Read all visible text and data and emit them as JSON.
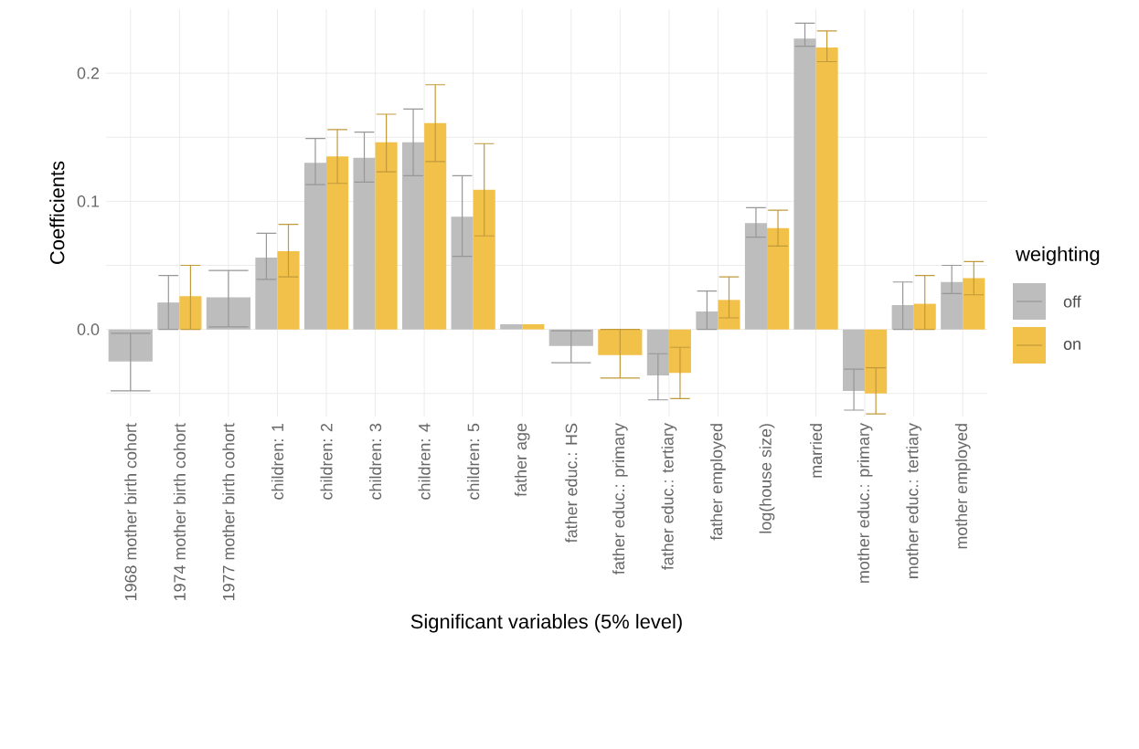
{
  "chart_data": {
    "type": "bar",
    "xlabel": "Significant variables (5% level)",
    "ylabel": "Coefficients",
    "legend_title": "weighting",
    "categories": [
      "1968 mother birth cohort",
      "1974 mother birth cohort",
      "1977 mother birth cohort",
      "children: 1",
      "children: 2",
      "children: 3",
      "children: 4",
      "children: 5",
      "father age",
      "father educ.: HS",
      "father educ.: primary",
      "father educ.: tertiary",
      "father employed",
      "log(house size)",
      "married",
      "mother educ.: primary",
      "mother educ.: tertiary",
      "mother employed"
    ],
    "series": [
      {
        "name": "off",
        "color": "#bdbdbd",
        "values": [
          -0.025,
          0.021,
          0.025,
          0.056,
          0.13,
          0.134,
          0.146,
          0.088,
          0.004,
          -0.013,
          null,
          -0.036,
          0.014,
          0.083,
          0.227,
          -0.048,
          0.019,
          0.037
        ],
        "errors": [
          [
            -0.048,
            -0.003
          ],
          [
            0.0,
            0.042
          ],
          [
            0.002,
            0.046
          ],
          [
            0.039,
            0.075
          ],
          [
            0.113,
            0.149
          ],
          [
            0.115,
            0.154
          ],
          [
            0.12,
            0.172
          ],
          [
            0.057,
            0.12
          ],
          null,
          [
            -0.026,
            -0.001
          ],
          null,
          [
            -0.055,
            -0.019
          ],
          [
            0.0,
            0.03
          ],
          [
            0.072,
            0.095
          ],
          [
            0.221,
            0.239
          ],
          [
            -0.063,
            -0.031
          ],
          [
            0.0,
            0.037
          ],
          [
            0.028,
            0.05
          ]
        ]
      },
      {
        "name": "on",
        "color": "#f2c14a",
        "values": [
          null,
          0.026,
          null,
          0.061,
          0.135,
          0.146,
          0.161,
          0.109,
          0.004,
          null,
          -0.02,
          -0.034,
          0.023,
          0.079,
          0.22,
          -0.05,
          0.02,
          0.04
        ],
        "errors": [
          null,
          [
            0.0,
            0.05
          ],
          null,
          [
            0.041,
            0.082
          ],
          [
            0.114,
            0.156
          ],
          [
            0.123,
            0.168
          ],
          [
            0.131,
            0.191
          ],
          [
            0.073,
            0.145
          ],
          null,
          null,
          [
            -0.038,
            0.0
          ],
          [
            -0.054,
            -0.014
          ],
          [
            0.009,
            0.041
          ],
          [
            0.065,
            0.093
          ],
          [
            0.209,
            0.233
          ],
          [
            -0.066,
            -0.03
          ],
          [
            0.0,
            0.042
          ],
          [
            0.027,
            0.053
          ]
        ]
      }
    ],
    "ylim": [
      -0.068,
      0.25
    ],
    "yticks": [
      {
        "value": -0.05,
        "label": null
      },
      {
        "value": 0,
        "label": "0.0"
      },
      {
        "value": 0.05,
        "label": null
      },
      {
        "value": 0.1,
        "label": "0.1"
      },
      {
        "value": 0.15,
        "label": null
      },
      {
        "value": 0.2,
        "label": "0.2"
      }
    ],
    "grid": true,
    "legend": "right"
  }
}
